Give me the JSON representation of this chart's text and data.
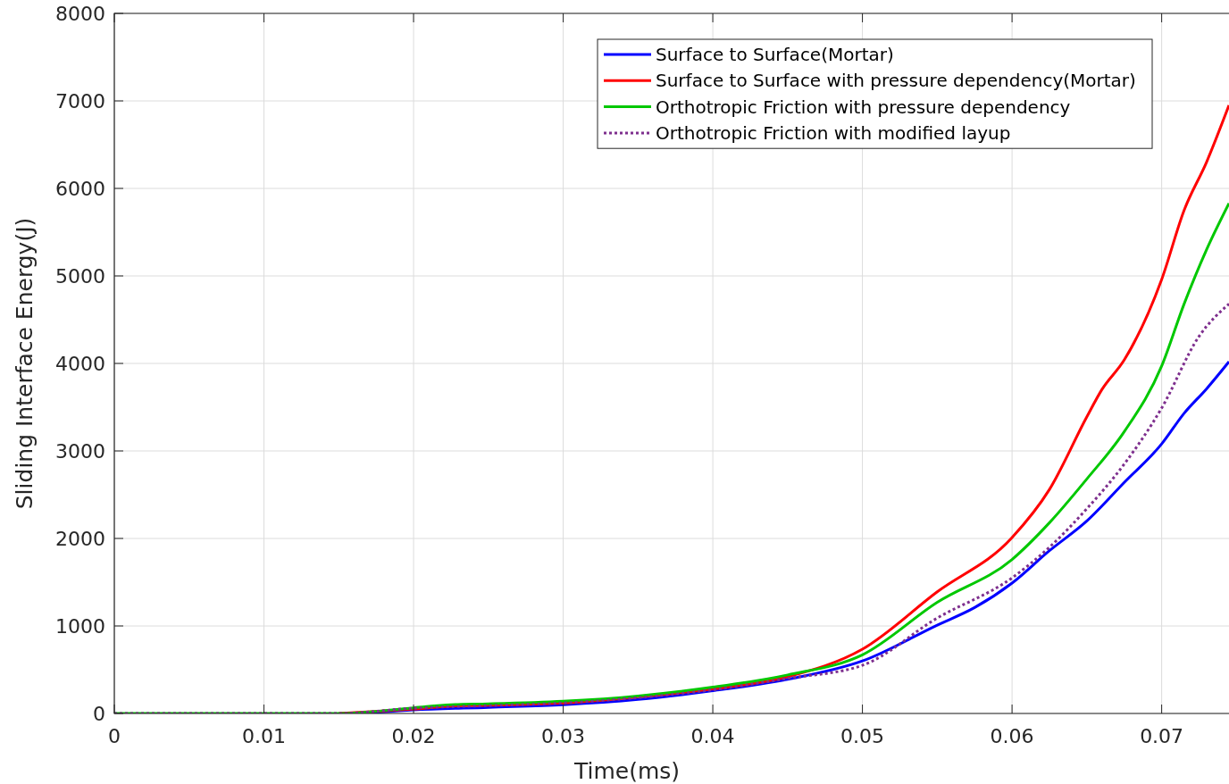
{
  "chart_data": {
    "type": "line",
    "xlabel": "Time(ms)",
    "ylabel": "Sliding Interface Energy(J)",
    "xlim": [
      0,
      0.0745
    ],
    "xticks": [
      0,
      0.01,
      0.02,
      0.03,
      0.04,
      0.05,
      0.06,
      0.07
    ],
    "ylim": [
      0,
      8000
    ],
    "yticks": [
      0,
      1000,
      2000,
      3000,
      4000,
      5000,
      6000,
      7000,
      8000
    ],
    "grid": true,
    "legend": "top right",
    "series": [
      {
        "name": "Surface to Surface(Mortar)",
        "color": "#0000ff",
        "line_style": "solid",
        "x": [
          0.0165,
          0.02,
          0.025,
          0.03,
          0.035,
          0.04,
          0.045,
          0.05,
          0.055,
          0.0575,
          0.06,
          0.0625,
          0.065,
          0.0675,
          0.07,
          0.0715,
          0.073,
          0.0745
        ],
        "values": [
          0,
          40,
          70,
          100,
          160,
          260,
          390,
          600,
          1010,
          1210,
          1490,
          1860,
          2200,
          2640,
          3080,
          3430,
          3710,
          4020
        ]
      },
      {
        "name": "Surface to Surface with pressure dependency(Mortar)",
        "color": "#ff0000",
        "line_style": "solid",
        "x": [
          0.015,
          0.02,
          0.0225,
          0.025,
          0.03,
          0.035,
          0.04,
          0.045,
          0.05,
          0.055,
          0.06,
          0.0625,
          0.065,
          0.066,
          0.0675,
          0.07,
          0.0715,
          0.073,
          0.0745
        ],
        "values": [
          0,
          50,
          85,
          95,
          120,
          190,
          280,
          420,
          735,
          1390,
          2010,
          2560,
          3390,
          3700,
          4040,
          4960,
          5750,
          6300,
          6950
        ]
      },
      {
        "name": "Orthotropic Friction with pressure dependency",
        "color": "#00c800",
        "line_style": "solid",
        "x": [
          0,
          0.01,
          0.015,
          0.02,
          0.0225,
          0.025,
          0.03,
          0.035,
          0.04,
          0.045,
          0.05,
          0.055,
          0.06,
          0.0625,
          0.065,
          0.0675,
          0.07,
          0.0715,
          0.073,
          0.0745
        ],
        "values": [
          0,
          0,
          0,
          65,
          100,
          110,
          140,
          200,
          300,
          440,
          670,
          1270,
          1760,
          2180,
          2680,
          3220,
          3970,
          4680,
          5300,
          5830
        ]
      },
      {
        "name": "Orthotropic Friction with modified layup",
        "color": "#7e2f8e",
        "line_style": "dotted",
        "x": [
          0,
          0.01,
          0.015,
          0.02,
          0.025,
          0.03,
          0.035,
          0.04,
          0.045,
          0.05,
          0.055,
          0.06,
          0.0625,
          0.065,
          0.0675,
          0.07,
          0.0725,
          0.0745
        ],
        "values": [
          0,
          0,
          0,
          60,
          90,
          120,
          180,
          270,
          400,
          550,
          1090,
          1550,
          1900,
          2340,
          2850,
          3490,
          4310,
          4680
        ]
      }
    ]
  }
}
